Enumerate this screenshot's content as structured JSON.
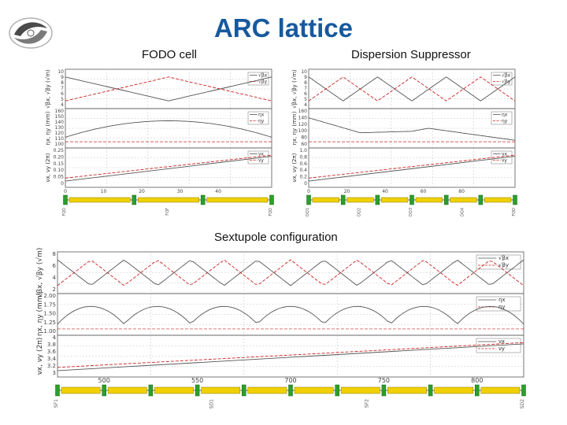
{
  "slide": {
    "title": "ARC lattice",
    "labels": {
      "fodo": "FODO cell",
      "ds": "Dispersion Suppressor",
      "sext": "Sextupole configuration"
    },
    "colors": {
      "title": "#17599e",
      "beta_x": "#555555",
      "beta_y": "#cc2222",
      "dipole": "#f0d000",
      "quad": "#2aa02a"
    }
  },
  "panels": {
    "fodo": {
      "ylabels": [
        "√βx, √βy (√m)",
        "ηx, ηy (mm)",
        "νx, νy (2π)"
      ],
      "yticks": [
        [
          "10",
          "9",
          "8",
          "7",
          "6",
          "5",
          "4"
        ],
        [
          "160",
          "150",
          "140",
          "130",
          "120",
          "110",
          "100"
        ],
        [
          "0.25",
          "0.20",
          "0.15",
          "0.10",
          "0.05",
          "0"
        ]
      ],
      "legends": [
        [
          "√βx",
          "√βy"
        ],
        [
          "ηx",
          "ηy"
        ],
        [
          "νx",
          "νy"
        ]
      ],
      "xticks": [
        "0",
        "10",
        "20",
        "30",
        "40"
      ],
      "elements": [
        "FQD",
        "FQF",
        "FQD"
      ]
    },
    "ds": {
      "ylabels": [
        "√βx, √βy (√m)",
        "ηx, ηy (mm)",
        "νx, νy (2π)"
      ],
      "yticks": [
        [
          "10",
          "9",
          "8",
          "7",
          "6",
          "5",
          "4"
        ],
        [
          "160",
          "140",
          "120",
          "100",
          "80",
          "60"
        ],
        [
          "1.0",
          "0.8",
          "0.6",
          "0.4",
          "0.2",
          "0"
        ]
      ],
      "legends": [
        [
          "√βx",
          "√βy"
        ],
        [
          "ηx",
          "ηy"
        ],
        [
          "νx",
          "νy"
        ]
      ],
      "xticks": [
        "0",
        "20",
        "40",
        "60",
        "80"
      ],
      "elements": [
        "DQ1",
        "DQ2",
        "DQ3",
        "DQ4",
        "FQD"
      ]
    },
    "sext": {
      "ylabels": [
        "√βx, √βy (√m)",
        "ηx, ηy (mm)",
        "νx, νy (2π)"
      ],
      "yticks": [
        [
          "8",
          "6",
          "4",
          "2"
        ],
        [
          "2.00",
          "1.75",
          "1.50",
          "1.25",
          "1.00"
        ],
        [
          "4",
          "3.8",
          "3.6",
          "3.4",
          "3.2",
          "3"
        ]
      ],
      "legends": [
        [
          "√βx",
          "√βy"
        ],
        [
          "ηx",
          "ηy"
        ],
        [
          "νx",
          "νy"
        ]
      ],
      "xticks": [
        "500",
        "550",
        "700",
        "750",
        "800"
      ],
      "elements": [
        "SF1",
        "SD1",
        "SF2",
        "SD2"
      ]
    }
  }
}
